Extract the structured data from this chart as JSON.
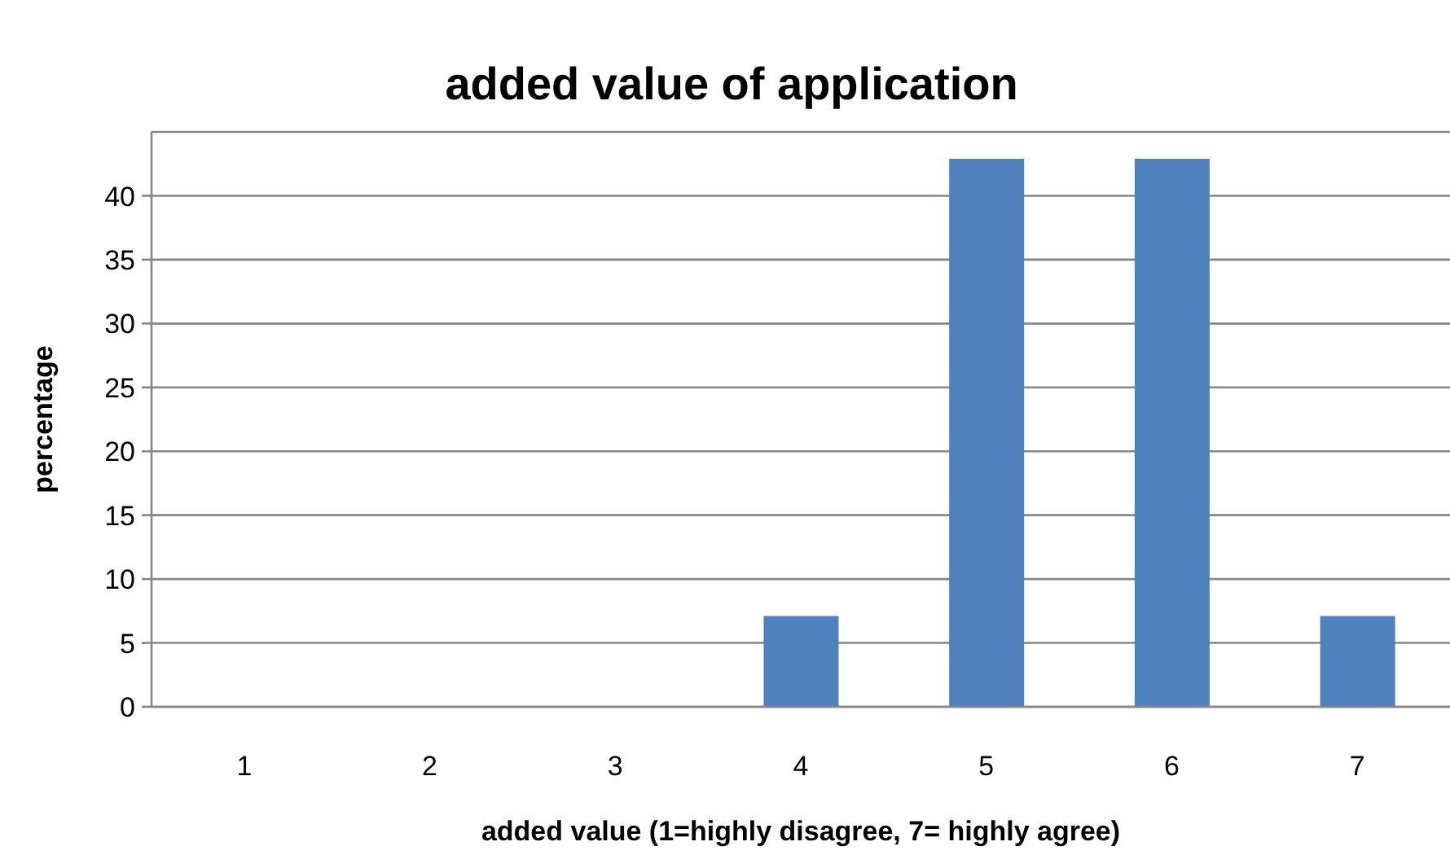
{
  "chart_data": {
    "type": "bar",
    "title": "added value of application",
    "xlabel": "added value (1=highly disagree, 7= highly agree)",
    "ylabel": "percentage",
    "categories": [
      "1",
      "2",
      "3",
      "4",
      "5",
      "6",
      "7"
    ],
    "values": [
      0,
      0,
      0,
      7.1,
      42.9,
      42.9,
      7.1
    ],
    "color": "#4f81bd",
    "ylim": [
      0,
      45
    ],
    "yticks": [
      0,
      5,
      10,
      15,
      20,
      25,
      30,
      35,
      40
    ],
    "grid": "y"
  }
}
